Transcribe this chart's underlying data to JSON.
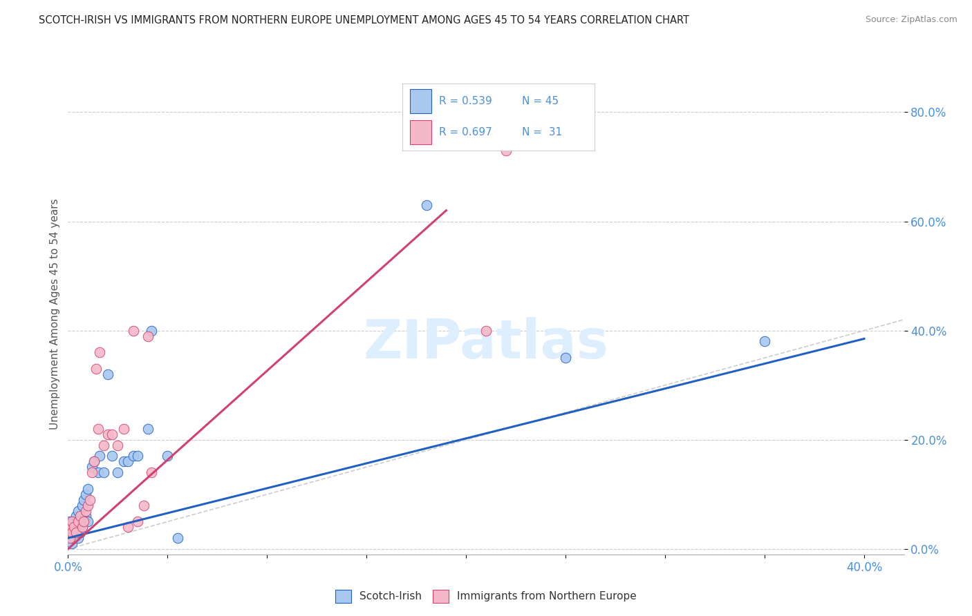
{
  "title": "SCOTCH-IRISH VS IMMIGRANTS FROM NORTHERN EUROPE UNEMPLOYMENT AMONG AGES 45 TO 54 YEARS CORRELATION CHART",
  "source": "Source: ZipAtlas.com",
  "ylabel": "Unemployment Among Ages 45 to 54 years",
  "ytick_labels": [
    "0.0%",
    "20.0%",
    "40.0%",
    "60.0%",
    "80.0%"
  ],
  "ytick_values": [
    0.0,
    0.2,
    0.4,
    0.6,
    0.8
  ],
  "xtick_labels": [
    "0.0%",
    "40.0%"
  ],
  "xtick_values": [
    0.0,
    0.4
  ],
  "xlim": [
    0.0,
    0.42
  ],
  "ylim": [
    -0.01,
    0.87
  ],
  "legend1_R": "0.539",
  "legend1_N": "45",
  "legend2_R": "0.697",
  "legend2_N": "31",
  "color_blue": "#a8c8f0",
  "color_pink": "#f5b8c8",
  "line_blue": "#2060c0",
  "line_pink": "#d04070",
  "line_diag_color": "#cccccc",
  "watermark_color": "#ddeeff",
  "blue_line_x0": 0.0,
  "blue_line_y0": 0.02,
  "blue_line_x1": 0.4,
  "blue_line_y1": 0.385,
  "pink_line_x0": 0.0,
  "pink_line_y0": 0.0,
  "pink_line_x1": 0.19,
  "pink_line_y1": 0.62,
  "scotch_irish_x": [
    0.001,
    0.001,
    0.001,
    0.001,
    0.002,
    0.002,
    0.002,
    0.002,
    0.003,
    0.003,
    0.003,
    0.004,
    0.004,
    0.005,
    0.005,
    0.005,
    0.006,
    0.006,
    0.007,
    0.007,
    0.008,
    0.008,
    0.009,
    0.009,
    0.01,
    0.01,
    0.012,
    0.013,
    0.015,
    0.016,
    0.018,
    0.02,
    0.022,
    0.025,
    0.028,
    0.03,
    0.033,
    0.035,
    0.04,
    0.042,
    0.05,
    0.055,
    0.18,
    0.25,
    0.35
  ],
  "scotch_irish_y": [
    0.02,
    0.03,
    0.04,
    0.05,
    0.01,
    0.02,
    0.03,
    0.04,
    0.02,
    0.03,
    0.05,
    0.03,
    0.06,
    0.02,
    0.04,
    0.07,
    0.03,
    0.05,
    0.04,
    0.08,
    0.05,
    0.09,
    0.06,
    0.1,
    0.05,
    0.11,
    0.15,
    0.16,
    0.14,
    0.17,
    0.14,
    0.32,
    0.17,
    0.14,
    0.16,
    0.16,
    0.17,
    0.17,
    0.22,
    0.4,
    0.17,
    0.02,
    0.63,
    0.35,
    0.38
  ],
  "northern_europe_x": [
    0.001,
    0.001,
    0.002,
    0.002,
    0.003,
    0.004,
    0.005,
    0.006,
    0.007,
    0.008,
    0.009,
    0.01,
    0.011,
    0.012,
    0.013,
    0.014,
    0.015,
    0.016,
    0.018,
    0.02,
    0.022,
    0.025,
    0.028,
    0.03,
    0.033,
    0.035,
    0.038,
    0.04,
    0.042,
    0.21,
    0.22
  ],
  "northern_europe_y": [
    0.02,
    0.04,
    0.03,
    0.05,
    0.04,
    0.03,
    0.05,
    0.06,
    0.04,
    0.05,
    0.07,
    0.08,
    0.09,
    0.14,
    0.16,
    0.33,
    0.22,
    0.36,
    0.19,
    0.21,
    0.21,
    0.19,
    0.22,
    0.04,
    0.4,
    0.05,
    0.08,
    0.39,
    0.14,
    0.4,
    0.73
  ]
}
